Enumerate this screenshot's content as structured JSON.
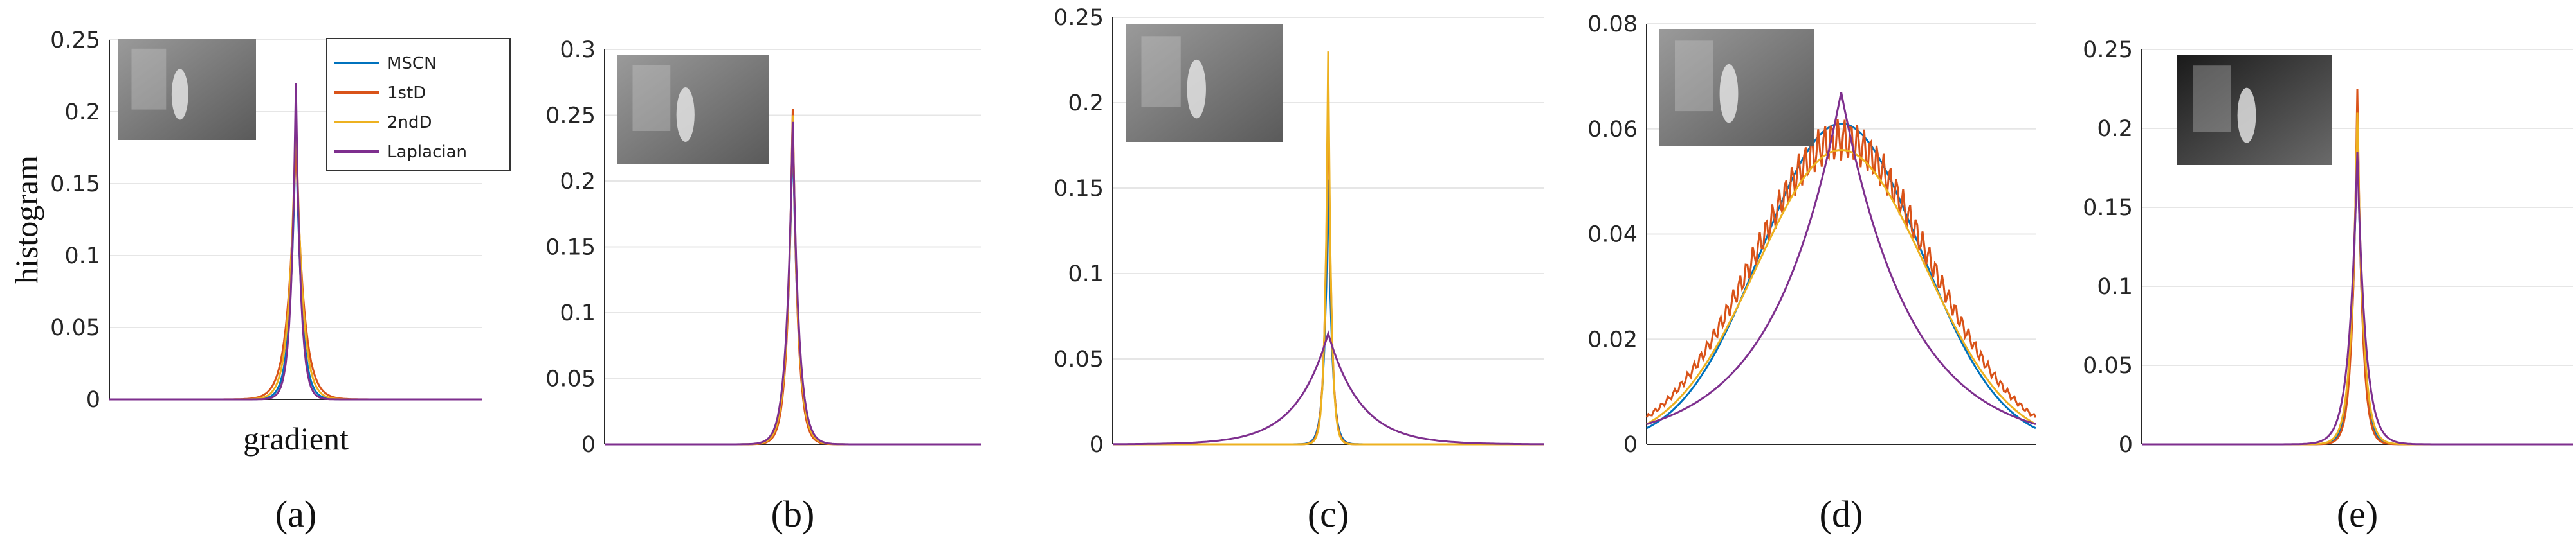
{
  "colors": {
    "MSCN": "#0072BD",
    "1stD": "#D95319",
    "2ndD": "#EDB120",
    "Laplacian": "#7E2F8E",
    "grid": "#e6e6e6",
    "axis": "#262626"
  },
  "chart_data": [
    {
      "type": "line",
      "panel_label": "(a)",
      "ylabel": "histogram",
      "xlabel": "gradient",
      "ylim": [
        0,
        0.25
      ],
      "yticks": [
        "0",
        "0.05",
        "0.1",
        "0.15",
        "0.2",
        "0.25"
      ],
      "grid": true,
      "legend": "top-right",
      "inset_image": "thermal-image",
      "series": [
        {
          "name": "MSCN",
          "peak": 0.19,
          "width": 0.06
        },
        {
          "name": "1stD",
          "peak": 0.18,
          "width": 0.085
        },
        {
          "name": "2ndD",
          "peak": 0.2,
          "width": 0.07
        },
        {
          "name": "Laplacian",
          "peak": 0.22,
          "width": 0.05
        }
      ]
    },
    {
      "type": "line",
      "panel_label": "(b)",
      "ylim": [
        0,
        0.3
      ],
      "yticks": [
        "0",
        "0.05",
        "0.1",
        "0.15",
        "0.2",
        "0.25",
        "0.3"
      ],
      "grid": true,
      "inset_image": "thermal-image",
      "series": [
        {
          "name": "MSCN",
          "peak": 0.24,
          "width": 0.06
        },
        {
          "name": "1stD",
          "peak": 0.255,
          "width": 0.055
        },
        {
          "name": "2ndD",
          "peak": 0.25,
          "width": 0.06
        },
        {
          "name": "Laplacian",
          "peak": 0.245,
          "width": 0.065
        }
      ]
    },
    {
      "type": "line",
      "panel_label": "(c)",
      "ylim": [
        0,
        0.25
      ],
      "yticks": [
        "0",
        "0.05",
        "0.1",
        "0.15",
        "0.2",
        "0.25"
      ],
      "grid": true,
      "inset_image": "thermal-image",
      "series": [
        {
          "name": "MSCN",
          "peak": 0.155,
          "width": 0.035
        },
        {
          "name": "1stD",
          "peak": 0.21,
          "width": 0.03
        },
        {
          "name": "2ndD",
          "peak": 0.23,
          "width": 0.028
        },
        {
          "name": "Laplacian",
          "peak": 0.065,
          "width": 0.3
        }
      ]
    },
    {
      "type": "line",
      "panel_label": "(d)",
      "ylim": [
        0,
        0.08
      ],
      "yticks": [
        "0",
        "0.02",
        "0.04",
        "0.06",
        "0.08"
      ],
      "grid": true,
      "inset_image": "thermal-image",
      "series": [
        {
          "name": "MSCN",
          "peak": 0.061,
          "width": 0.9
        },
        {
          "name": "1stD",
          "peak": 0.058,
          "width": 1.0
        },
        {
          "name": "2ndD",
          "peak": 0.056,
          "width": 0.95
        },
        {
          "name": "Laplacian",
          "peak": 0.067,
          "width": 0.7
        }
      ]
    },
    {
      "type": "line",
      "panel_label": "(e)",
      "ylim": [
        0,
        0.25
      ],
      "yticks": [
        "0",
        "0.05",
        "0.1",
        "0.15",
        "0.2",
        "0.25"
      ],
      "grid": true,
      "inset_image": "thermal-image",
      "series": [
        {
          "name": "MSCN",
          "peak": 0.21,
          "width": 0.05
        },
        {
          "name": "1stD",
          "peak": 0.225,
          "width": 0.045
        },
        {
          "name": "2ndD",
          "peak": 0.21,
          "width": 0.055
        },
        {
          "name": "Laplacian",
          "peak": 0.185,
          "width": 0.075
        }
      ]
    }
  ]
}
